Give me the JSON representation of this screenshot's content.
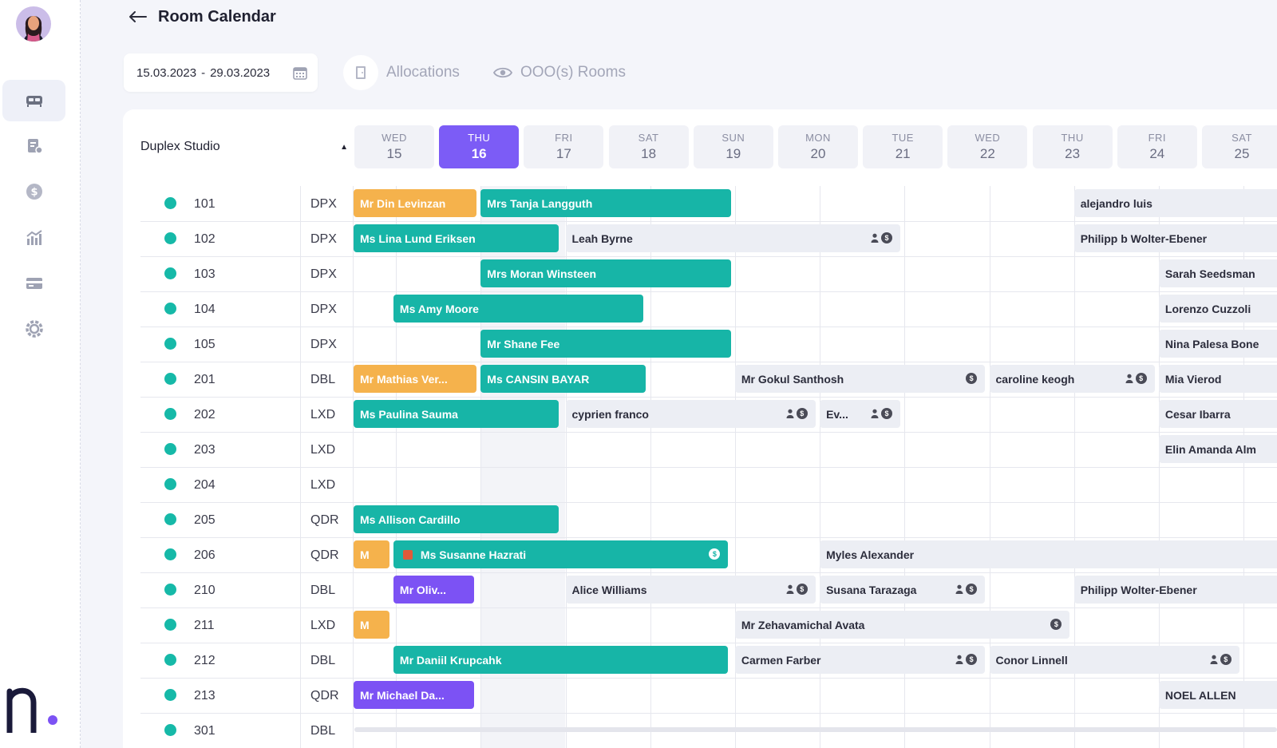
{
  "header": {
    "title": "Room Calendar"
  },
  "toolbar": {
    "date_from": "15.03.2023",
    "date_sep": "-",
    "date_to": "29.03.2023",
    "allocations_label": "Allocations",
    "ooo_label": "OOO(s) Rooms"
  },
  "sidebar": {
    "items": [
      {
        "icon": "bed-icon",
        "active": true
      },
      {
        "icon": "reservation-icon",
        "active": false
      },
      {
        "icon": "dollar-icon",
        "active": false
      },
      {
        "icon": "reports-icon",
        "active": false
      },
      {
        "icon": "card-icon",
        "active": false
      },
      {
        "icon": "settings-icon",
        "active": false
      }
    ]
  },
  "room_type": {
    "label": "Duplex Studio"
  },
  "days": [
    {
      "dow": "WED",
      "num": "15"
    },
    {
      "dow": "THU",
      "num": "16",
      "active": true
    },
    {
      "dow": "FRI",
      "num": "17"
    },
    {
      "dow": "SAT",
      "num": "18"
    },
    {
      "dow": "SUN",
      "num": "19"
    },
    {
      "dow": "MON",
      "num": "20"
    },
    {
      "dow": "TUE",
      "num": "21"
    },
    {
      "dow": "WED",
      "num": "22"
    },
    {
      "dow": "THU",
      "num": "23"
    },
    {
      "dow": "FRI",
      "num": "24"
    },
    {
      "dow": "SAT",
      "num": "25"
    }
  ],
  "rooms": [
    {
      "num": "101",
      "code": "DPX"
    },
    {
      "num": "102",
      "code": "DPX"
    },
    {
      "num": "103",
      "code": "DPX"
    },
    {
      "num": "104",
      "code": "DPX"
    },
    {
      "num": "105",
      "code": "DPX"
    },
    {
      "num": "201",
      "code": "DBL"
    },
    {
      "num": "202",
      "code": "LXD"
    },
    {
      "num": "203",
      "code": "LXD"
    },
    {
      "num": "204",
      "code": "LXD"
    },
    {
      "num": "205",
      "code": "QDR"
    },
    {
      "num": "206",
      "code": "QDR"
    },
    {
      "num": "210",
      "code": "DBL"
    },
    {
      "num": "211",
      "code": "LXD"
    },
    {
      "num": "212",
      "code": "DBL"
    },
    {
      "num": "213",
      "code": "QDR"
    },
    {
      "num": "301",
      "code": "DBL"
    }
  ],
  "bookings": [
    {
      "row": 0,
      "start": 0,
      "span": 1.45,
      "style": "orange",
      "name": "Mr Din Levinzan"
    },
    {
      "row": 0,
      "start": 1.5,
      "span": 2.95,
      "style": "teal",
      "name": "Mrs Tanja Langguth"
    },
    {
      "row": 0,
      "start": 8.5,
      "span": 2.5,
      "style": "grey",
      "name": "alejandro luis"
    },
    {
      "row": 1,
      "start": 0,
      "span": 2.42,
      "style": "teal",
      "name": "Ms Lina Lund Eriksen"
    },
    {
      "row": 1,
      "start": 2.5,
      "span": 3.95,
      "style": "grey",
      "name": "Leah Byrne",
      "icons": [
        "person",
        "coin"
      ]
    },
    {
      "row": 1,
      "start": 8.5,
      "span": 2.5,
      "style": "grey",
      "name": "Philipp b Wolter-Ebener"
    },
    {
      "row": 2,
      "start": 1.5,
      "span": 2.95,
      "style": "teal",
      "name": "Mrs Moran Winsteen"
    },
    {
      "row": 2,
      "start": 9.5,
      "span": 1.5,
      "style": "grey",
      "name": "Sarah Seedsman"
    },
    {
      "row": 3,
      "start": 0.47,
      "span": 2.95,
      "style": "teal",
      "name": "Ms Amy Moore"
    },
    {
      "row": 3,
      "start": 9.5,
      "span": 1.5,
      "style": "grey",
      "name": "Lorenzo Cuzzoli"
    },
    {
      "row": 4,
      "start": 1.5,
      "span": 2.95,
      "style": "teal",
      "name": "Mr Shane Fee"
    },
    {
      "row": 4,
      "start": 9.5,
      "span": 1.5,
      "style": "grey",
      "name": "Nina Palesa Bone"
    },
    {
      "row": 5,
      "start": 0,
      "span": 1.45,
      "style": "orange",
      "name": "Mr Mathias Ver..."
    },
    {
      "row": 5,
      "start": 1.5,
      "span": 1.95,
      "style": "teal",
      "name": "Ms CANSIN BAYAR"
    },
    {
      "row": 5,
      "start": 4.5,
      "span": 2.95,
      "style": "grey",
      "name": "Mr Gokul Santhosh",
      "icons": [
        "coin"
      ]
    },
    {
      "row": 5,
      "start": 7.5,
      "span": 1.95,
      "style": "grey",
      "name": "caroline keogh",
      "icons": [
        "person",
        "coin"
      ]
    },
    {
      "row": 5,
      "start": 9.5,
      "span": 1.5,
      "style": "grey",
      "name": "Mia Vierod"
    },
    {
      "row": 6,
      "start": 0,
      "span": 2.42,
      "style": "teal",
      "name": "Ms Paulina Sauma"
    },
    {
      "row": 6,
      "start": 2.5,
      "span": 2.95,
      "style": "grey",
      "name": "cyprien franco",
      "icons": [
        "person",
        "coin"
      ]
    },
    {
      "row": 6,
      "start": 5.5,
      "span": 0.95,
      "style": "grey",
      "name": "Ev...",
      "icons": [
        "person",
        "coin"
      ]
    },
    {
      "row": 6,
      "start": 9.5,
      "span": 1.5,
      "style": "grey",
      "name": "Cesar Ibarra"
    },
    {
      "row": 7,
      "start": 9.5,
      "span": 1.5,
      "style": "grey",
      "name": "Elin Amanda Alm"
    },
    {
      "row": 9,
      "start": 0,
      "span": 2.42,
      "style": "teal",
      "name": "Ms Allison Cardillo"
    },
    {
      "row": 10,
      "start": 0,
      "span": 0.42,
      "style": "orange",
      "name": "M"
    },
    {
      "row": 10,
      "start": 0.47,
      "span": 3.95,
      "style": "teal",
      "name": "Ms Susanne Hazrati",
      "bag": true,
      "icons": [
        "coin-white"
      ]
    },
    {
      "row": 10,
      "start": 5.5,
      "span": 5.5,
      "style": "grey",
      "name": "Myles Alexander"
    },
    {
      "row": 11,
      "start": 0.47,
      "span": 0.95,
      "style": "purple",
      "name": "Mr Oliv..."
    },
    {
      "row": 11,
      "start": 2.5,
      "span": 2.95,
      "style": "grey",
      "name": "Alice Williams",
      "icons": [
        "person",
        "coin"
      ]
    },
    {
      "row": 11,
      "start": 5.5,
      "span": 1.95,
      "style": "grey",
      "name": "Susana Tarazaga",
      "icons": [
        "person",
        "coin"
      ]
    },
    {
      "row": 11,
      "start": 8.5,
      "span": 2.5,
      "style": "grey",
      "name": "Philipp Wolter-Ebener"
    },
    {
      "row": 12,
      "start": 0,
      "span": 0.42,
      "style": "orange",
      "name": "M"
    },
    {
      "row": 12,
      "start": 4.5,
      "span": 3.95,
      "style": "grey",
      "name": "Mr Zehavamichal Avata",
      "icons": [
        "coin"
      ]
    },
    {
      "row": 13,
      "start": 0.47,
      "span": 3.95,
      "style": "teal",
      "name": "Mr Daniil Krupcahk"
    },
    {
      "row": 13,
      "start": 4.5,
      "span": 2.95,
      "style": "grey",
      "name": "Carmen Farber",
      "icons": [
        "person",
        "coin"
      ]
    },
    {
      "row": 13,
      "start": 7.5,
      "span": 2.95,
      "style": "grey",
      "name": "Conor Linnell",
      "icons": [
        "person",
        "coin"
      ]
    },
    {
      "row": 14,
      "start": 0,
      "span": 1.42,
      "style": "purple",
      "name": "Mr Michael Da..."
    },
    {
      "row": 14,
      "start": 9.5,
      "span": 1.5,
      "style": "grey",
      "name": "NOEL ALLEN"
    }
  ]
}
